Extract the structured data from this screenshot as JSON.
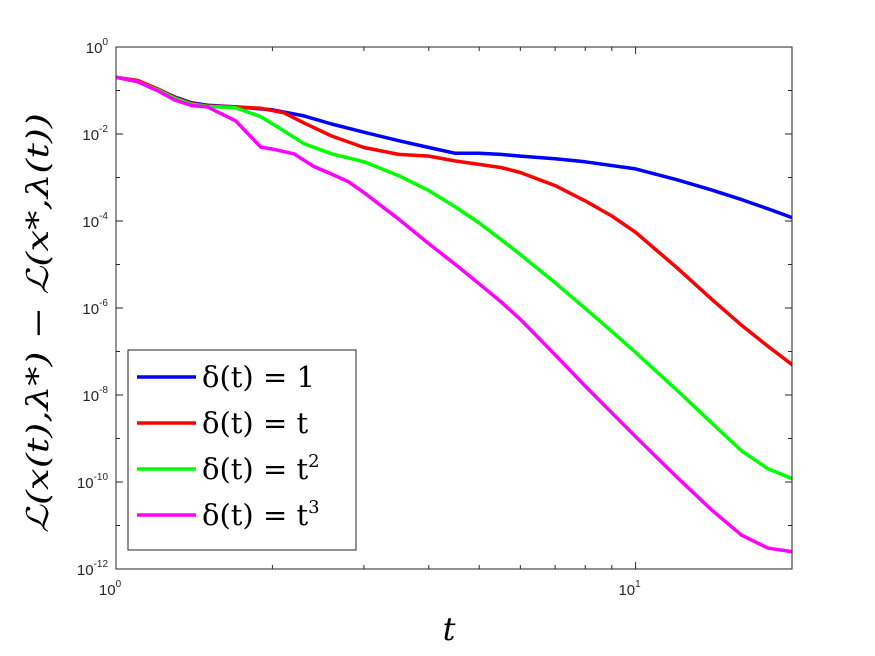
{
  "chart_data": {
    "type": "line",
    "xlabel": "t",
    "ylabel": "ℒ(x(t),λ*) − ℒ(x*,λ(t))",
    "xscale": "log",
    "yscale": "log",
    "xlim": [
      1,
      20
    ],
    "ylim": [
      1e-12,
      1
    ],
    "x_ticks": [
      {
        "value": 1,
        "base": "10",
        "exp": "0"
      },
      {
        "value": 10,
        "base": "10",
        "exp": "1"
      }
    ],
    "y_ticks": [
      {
        "value": 1,
        "base": "10",
        "exp": "0"
      },
      {
        "value": 0.01,
        "base": "10",
        "exp": "-2"
      },
      {
        "value": 0.0001,
        "base": "10",
        "exp": "-4"
      },
      {
        "value": 1e-06,
        "base": "10",
        "exp": "-6"
      },
      {
        "value": 1e-08,
        "base": "10",
        "exp": "-8"
      },
      {
        "value": 1e-10,
        "base": "10",
        "exp": "-10"
      },
      {
        "value": 1e-12,
        "base": "10",
        "exp": "-12"
      }
    ],
    "grid": false,
    "legend_position": "bottom-left",
    "series": [
      {
        "name": "δ(t) = 1",
        "label_main": "δ(t) = 1",
        "label_sup": "",
        "color": "#0000ff",
        "x": [
          1,
          1.1,
          1.2,
          1.3,
          1.4,
          1.5,
          1.7,
          2.0,
          2.3,
          2.6,
          3.0,
          3.5,
          4.0,
          4.5,
          5.0,
          5.5,
          6.0,
          7.0,
          8.0,
          10,
          12,
          14,
          16,
          18,
          20
        ],
        "y": [
          0.2,
          0.17,
          0.11,
          0.07,
          0.052,
          0.046,
          0.042,
          0.036,
          0.026,
          0.017,
          0.011,
          0.007,
          0.0049,
          0.0036,
          0.0036,
          0.0034,
          0.0031,
          0.0027,
          0.0023,
          0.00158,
          0.00089,
          0.00052,
          0.00031,
          0.00019,
          0.00012
        ]
      },
      {
        "name": "δ(t) = t",
        "label_main": "δ(t) = t",
        "label_sup": "",
        "color": "#ff0000",
        "x": [
          1,
          1.1,
          1.2,
          1.3,
          1.4,
          1.5,
          1.7,
          1.9,
          2.1,
          2.3,
          2.6,
          3.0,
          3.5,
          4.0,
          4.5,
          5.0,
          5.5,
          6.0,
          7.0,
          8.0,
          9.0,
          10,
          12,
          14,
          16,
          18,
          20
        ],
        "y": [
          0.2,
          0.17,
          0.11,
          0.068,
          0.05,
          0.044,
          0.042,
          0.039,
          0.031,
          0.018,
          0.009,
          0.0049,
          0.0034,
          0.0031,
          0.0024,
          0.002,
          0.0017,
          0.0013,
          0.00065,
          0.00029,
          0.00013,
          5.5e-05,
          8.5e-06,
          1.6e-06,
          4e-07,
          1.3e-07,
          5e-08
        ]
      },
      {
        "name": "δ(t) = t²",
        "label_main": "δ(t) = t",
        "label_sup": "2",
        "color": "#00ff00",
        "x": [
          1,
          1.1,
          1.2,
          1.3,
          1.4,
          1.5,
          1.7,
          1.9,
          2.1,
          2.3,
          2.6,
          3.0,
          3.5,
          4.0,
          4.5,
          5.0,
          5.5,
          6.0,
          7.0,
          8.0,
          9.0,
          10,
          12,
          14,
          16,
          18,
          20
        ],
        "y": [
          0.2,
          0.16,
          0.105,
          0.065,
          0.048,
          0.043,
          0.04,
          0.025,
          0.012,
          0.006,
          0.0035,
          0.0023,
          0.0011,
          0.0005,
          0.00021,
          9e-05,
          3.8e-05,
          1.7e-05,
          3.8e-06,
          9.8e-07,
          2.9e-07,
          9.5e-08,
          1.3e-08,
          2.3e-09,
          5.2e-10,
          2e-10,
          1.2e-10
        ]
      },
      {
        "name": "δ(t) = t³",
        "label_main": "δ(t) = t",
        "label_sup": "3",
        "color": "#ff00ff",
        "x": [
          1,
          1.1,
          1.2,
          1.3,
          1.4,
          1.5,
          1.7,
          1.9,
          2.0,
          2.2,
          2.4,
          2.6,
          2.8,
          3.0,
          3.2,
          3.5,
          4.0,
          4.5,
          5.0,
          5.5,
          6.0,
          7.0,
          8.0,
          9.0,
          10,
          12,
          14,
          16,
          18,
          20
        ],
        "y": [
          0.2,
          0.16,
          0.1,
          0.06,
          0.045,
          0.042,
          0.02,
          0.005,
          0.0045,
          0.0035,
          0.0018,
          0.0012,
          0.0008,
          0.00045,
          0.00025,
          0.00011,
          3e-05,
          1e-05,
          3.6e-06,
          1.4e-06,
          5.5e-07,
          8.4e-08,
          1.6e-08,
          3.9e-09,
          1.1e-09,
          1.3e-10,
          2.3e-11,
          6e-12,
          3e-12,
          2.5e-12
        ]
      }
    ]
  }
}
